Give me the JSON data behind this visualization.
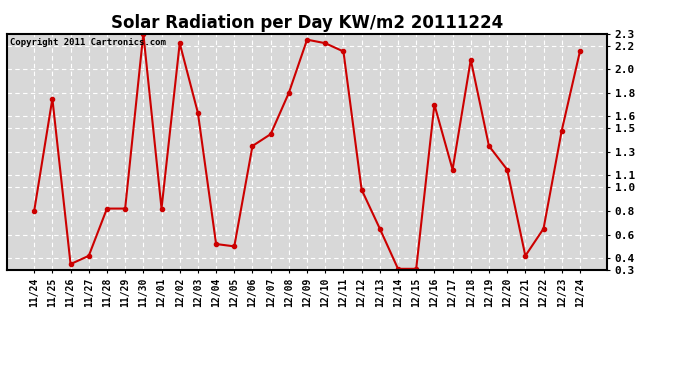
{
  "title": "Solar Radiation per Day KW/m2 20111224",
  "copyright_text": "Copyright 2011 Cartronics.com",
  "x_labels": [
    "11/24",
    "11/25",
    "11/26",
    "11/27",
    "11/28",
    "11/29",
    "11/30",
    "12/01",
    "12/02",
    "12/03",
    "12/04",
    "12/05",
    "12/06",
    "12/07",
    "12/08",
    "12/09",
    "12/10",
    "12/11",
    "12/12",
    "12/13",
    "12/14",
    "12/15",
    "12/16",
    "12/17",
    "12/18",
    "12/19",
    "12/20",
    "12/21",
    "12/22",
    "12/23",
    "12/24"
  ],
  "y_values": [
    0.8,
    1.75,
    0.35,
    0.42,
    0.82,
    0.82,
    2.3,
    0.82,
    2.22,
    1.63,
    0.52,
    0.5,
    1.35,
    1.45,
    1.8,
    2.25,
    2.22,
    2.15,
    0.98,
    0.65,
    0.31,
    0.31,
    1.7,
    1.15,
    2.08,
    1.35,
    1.15,
    0.42,
    0.65,
    1.48,
    2.15
  ],
  "line_color": "#cc0000",
  "marker": "o",
  "marker_size": 3,
  "line_width": 1.5,
  "bg_color": "#ffffff",
  "plot_bg_color": "#d8d8d8",
  "grid_color": "#ffffff",
  "y_min": 0.3,
  "y_max": 2.3,
  "y_ticks": [
    0.3,
    0.4,
    0.6,
    0.8,
    1.0,
    1.1,
    1.3,
    1.5,
    1.6,
    1.8,
    2.0,
    2.2,
    2.3
  ]
}
